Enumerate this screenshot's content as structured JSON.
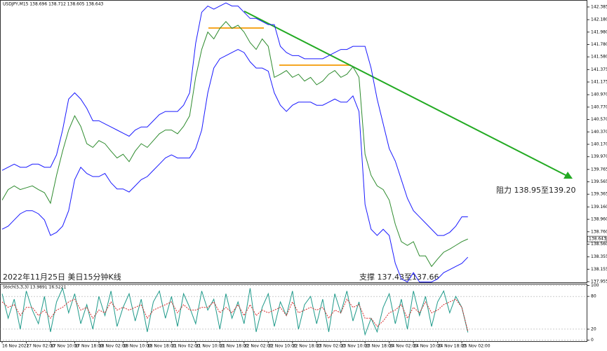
{
  "chart_data": [
    {
      "type": "line",
      "title": "USDJPY,M15  138.696 138.712 138.605 138.643",
      "categories": [
        "16 Nov 2022",
        null,
        null,
        null,
        "17 Nov 02:00",
        null,
        null,
        null,
        "17 Nov 10:00",
        null,
        null,
        null,
        "17 Nov 18:00",
        null,
        null,
        null,
        "18 Nov 02:00",
        null,
        null,
        null,
        "18 Nov 10:00",
        null,
        null,
        null,
        "18 Nov 18:00",
        null,
        null,
        null,
        "21 Nov 02:00",
        null,
        null,
        null,
        "21 Nov 10:00",
        null,
        null,
        null,
        "21 Nov 18:00",
        null,
        null,
        null,
        "22 Nov 02:00",
        null,
        null,
        null,
        "22 Nov 10:00",
        null,
        null,
        null,
        "22 Nov 18:00",
        null,
        null,
        null,
        "23 Nov 02:00",
        null,
        null,
        null,
        "23 Nov 10:00",
        null,
        null,
        null,
        "23 Nov 18:00",
        null,
        null,
        null,
        "24 Nov 02:00",
        null,
        null,
        null,
        "24 Nov 10:00",
        null,
        null,
        null,
        "24 Nov 18:00",
        null,
        null,
        null,
        "25 Nov 02:00",
        null
      ],
      "series": [
        {
          "color": "#2e8b2e",
          "values": [
            139.27,
            139.44,
            139.5,
            139.44,
            139.47,
            139.5,
            139.44,
            139.39,
            139.22,
            139.67,
            140.06,
            140.4,
            140.63,
            140.46,
            140.18,
            140.12,
            140.23,
            140.18,
            140.06,
            139.95,
            140.01,
            139.89,
            140.06,
            140.18,
            140.12,
            140.23,
            140.34,
            140.4,
            140.4,
            140.34,
            140.46,
            140.63,
            141.25,
            141.7,
            141.98,
            141.87,
            142.04,
            142.15,
            142.04,
            142.09,
            141.98,
            141.81,
            141.7,
            141.87,
            141.75,
            141.25,
            141.3,
            141.36,
            141.25,
            141.3,
            141.19,
            141.25,
            141.13,
            141.19,
            141.3,
            141.36,
            141.25,
            141.3,
            141.42,
            141.25,
            140.01,
            139.67,
            139.5,
            139.44,
            139.27,
            138.88,
            138.6,
            138.54,
            138.6,
            138.37,
            138.37,
            138.2,
            138.32,
            138.43,
            138.48,
            138.54,
            138.6,
            138.643
          ]
        },
        {
          "color": "#1a1aff",
          "values": [
            139.75,
            139.8,
            139.85,
            139.8,
            139.8,
            139.85,
            139.85,
            139.8,
            139.8,
            140.0,
            140.4,
            140.9,
            141.0,
            140.9,
            140.75,
            140.55,
            140.55,
            140.5,
            140.45,
            140.4,
            140.35,
            140.3,
            140.4,
            140.45,
            140.45,
            140.55,
            140.65,
            140.7,
            140.7,
            140.7,
            140.8,
            141.0,
            141.8,
            142.3,
            142.4,
            142.35,
            142.4,
            142.45,
            142.4,
            142.4,
            142.3,
            142.2,
            142.2,
            142.15,
            142.1,
            142.1,
            141.75,
            141.65,
            141.6,
            141.6,
            141.55,
            141.55,
            141.55,
            141.55,
            141.6,
            141.65,
            141.7,
            141.7,
            141.75,
            141.75,
            141.75,
            141.4,
            140.9,
            140.5,
            140.1,
            139.9,
            139.6,
            139.3,
            139.1,
            139.0,
            138.9,
            138.8,
            138.7,
            138.7,
            138.75,
            138.85,
            139.0,
            139.0
          ]
        },
        {
          "color": "#1a1aff",
          "values": [
            138.8,
            138.85,
            138.95,
            139.05,
            139.1,
            139.1,
            139.05,
            138.95,
            138.7,
            138.75,
            138.85,
            139.1,
            139.6,
            139.8,
            139.7,
            139.65,
            139.65,
            139.7,
            139.55,
            139.45,
            139.45,
            139.4,
            139.5,
            139.6,
            139.65,
            139.75,
            139.85,
            139.95,
            140.0,
            139.95,
            139.95,
            139.95,
            140.1,
            140.4,
            141.0,
            141.4,
            141.55,
            141.6,
            141.65,
            141.7,
            141.65,
            141.5,
            141.4,
            141.4,
            141.35,
            141.0,
            140.8,
            140.7,
            140.8,
            140.85,
            140.85,
            140.85,
            140.8,
            140.8,
            140.85,
            140.9,
            140.85,
            140.85,
            140.95,
            140.7,
            139.2,
            138.8,
            138.7,
            138.8,
            138.7,
            138.25,
            138.0,
            137.95,
            138.1,
            137.95,
            137.95,
            137.95,
            138.0,
            138.1,
            138.15,
            138.2,
            138.25,
            138.35
          ]
        }
      ],
      "ylim": [
        137.944,
        142.486
      ],
      "yticks": [
        142.385,
        {
          "value": 142.18,
          "label": "142.180"
        },
        {
          "value": 141.98,
          "label": "141.980"
        },
        {
          "value": 141.78,
          "label": "141.780"
        },
        {
          "value": 141.58,
          "label": "141.580"
        },
        141.375,
        141.175,
        {
          "value": 140.97,
          "label": "140.970"
        },
        {
          "value": 140.77,
          "label": "140.770"
        },
        {
          "value": 140.57,
          "label": "140.570"
        },
        {
          "value": 140.37,
          "label": "140.370"
        },
        {
          "value": 140.17,
          "label": "140.170"
        },
        {
          "value": 139.97,
          "label": "139.970"
        },
        139.765,
        139.565,
        139.365,
        {
          "value": 139.16,
          "label": "139.160"
        },
        {
          "value": 138.96,
          "label": "138.960"
        },
        {
          "value": 138.76,
          "label": "138.760"
        },
        {
          "value": 138.56,
          "label": "138.560"
        },
        138.355,
        138.155,
        137.955
      ],
      "annotations": [
        "阻力 138.95至139.20",
        "2022年11月25日 美日15分钟K线",
        "支撑 137.43至137.66"
      ]
    },
    {
      "type": "line",
      "title": "Stoch(5,3,3) 13.9891 16.5221",
      "series": [
        {
          "color": "#1f9a8a",
          "values": [
            85,
            40,
            75,
            20,
            90,
            55,
            30,
            80,
            15,
            70,
            95,
            50,
            85,
            30,
            65,
            20,
            80,
            45,
            90,
            25,
            60,
            85,
            35,
            75,
            15,
            70,
            90,
            40,
            80,
            25,
            85,
            60,
            30,
            90,
            55,
            75,
            20,
            85,
            40,
            70,
            30,
            95,
            15,
            60,
            85,
            25,
            70,
            45,
            90,
            20,
            65,
            80,
            30,
            75,
            15,
            85,
            50,
            90,
            35,
            70,
            10,
            40,
            15,
            60,
            85,
            30,
            75,
            20,
            90,
            45,
            80,
            25,
            70,
            90,
            50,
            80,
            60,
            13.9891
          ]
        },
        {
          "color": "#d62828",
          "dashed": true,
          "values": [
            70,
            60,
            65,
            45,
            60,
            60,
            45,
            55,
            40,
            55,
            60,
            70,
            75,
            55,
            60,
            40,
            55,
            50,
            70,
            55,
            60,
            55,
            60,
            65,
            40,
            55,
            60,
            65,
            70,
            50,
            65,
            55,
            55,
            60,
            60,
            70,
            50,
            60,
            50,
            65,
            45,
            65,
            45,
            55,
            50,
            55,
            60,
            45,
            70,
            50,
            55,
            60,
            55,
            60,
            40,
            55,
            50,
            75,
            60,
            65,
            40,
            40,
            25,
            35,
            50,
            55,
            65,
            40,
            60,
            50,
            70,
            50,
            55,
            65,
            70,
            75,
            60,
            16.5221
          ]
        }
      ],
      "ylim": [
        -2,
        102
      ],
      "yticks": [
        100,
        80,
        20,
        0
      ]
    }
  ]
}
